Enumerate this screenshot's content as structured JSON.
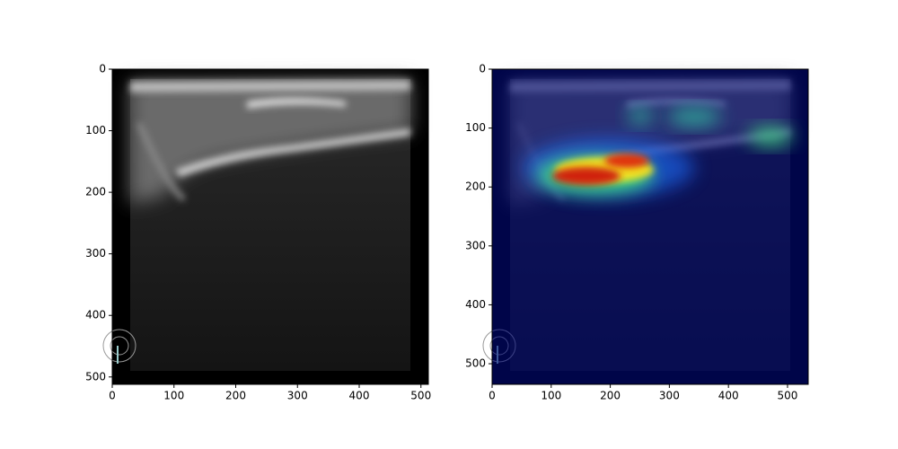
{
  "chart_data": [
    {
      "type": "image",
      "xlim": [
        0,
        512
      ],
      "ylim": [
        512,
        0
      ],
      "xticks": [
        0,
        100,
        200,
        300,
        400,
        500
      ],
      "yticks": [
        0,
        100,
        200,
        300,
        400,
        500
      ]
    },
    {
      "type": "image",
      "xlim": [
        0,
        535
      ],
      "ylim": [
        535,
        0
      ],
      "xticks": [
        0,
        100,
        200,
        300,
        400,
        500
      ],
      "yticks": [
        0,
        100,
        200,
        300,
        400,
        500
      ]
    }
  ]
}
